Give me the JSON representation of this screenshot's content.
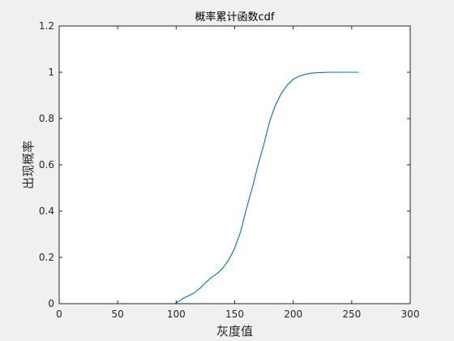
{
  "chart_data": {
    "type": "line",
    "title": "概率累计函数cdf",
    "xlabel": "灰度值",
    "ylabel": "出现概率",
    "xlim": [
      0,
      300
    ],
    "ylim": [
      0,
      1.2
    ],
    "xticks": [
      0,
      50,
      100,
      150,
      200,
      250,
      300
    ],
    "yticks": [
      0,
      0.2,
      0.4,
      0.6,
      0.8,
      1,
      1.2
    ],
    "xtick_labels": [
      "0",
      "50",
      "100",
      "150",
      "200",
      "250",
      "300"
    ],
    "ytick_labels": [
      "0",
      "0.2",
      "0.4",
      "0.6",
      "0.8",
      "1",
      "1.2"
    ],
    "grid": false,
    "box": true,
    "series": [
      {
        "color": "#0072BD",
        "x": [
          0,
          50,
          99,
          100,
          102,
          105,
          110,
          115,
          120,
          125,
          130,
          135,
          140,
          145,
          150,
          155,
          160,
          165,
          170,
          175,
          180,
          185,
          190,
          195,
          200,
          205,
          210,
          215,
          220,
          225,
          230,
          240,
          250,
          256
        ],
        "y": [
          0,
          0,
          0,
          0.003,
          0.01,
          0.02,
          0.033,
          0.045,
          0.065,
          0.09,
          0.113,
          0.13,
          0.155,
          0.19,
          0.24,
          0.31,
          0.41,
          0.5,
          0.6,
          0.69,
          0.79,
          0.86,
          0.91,
          0.945,
          0.97,
          0.983,
          0.991,
          0.996,
          0.998,
          0.999,
          1.0,
          1.0,
          1.0,
          1.0
        ]
      }
    ]
  }
}
